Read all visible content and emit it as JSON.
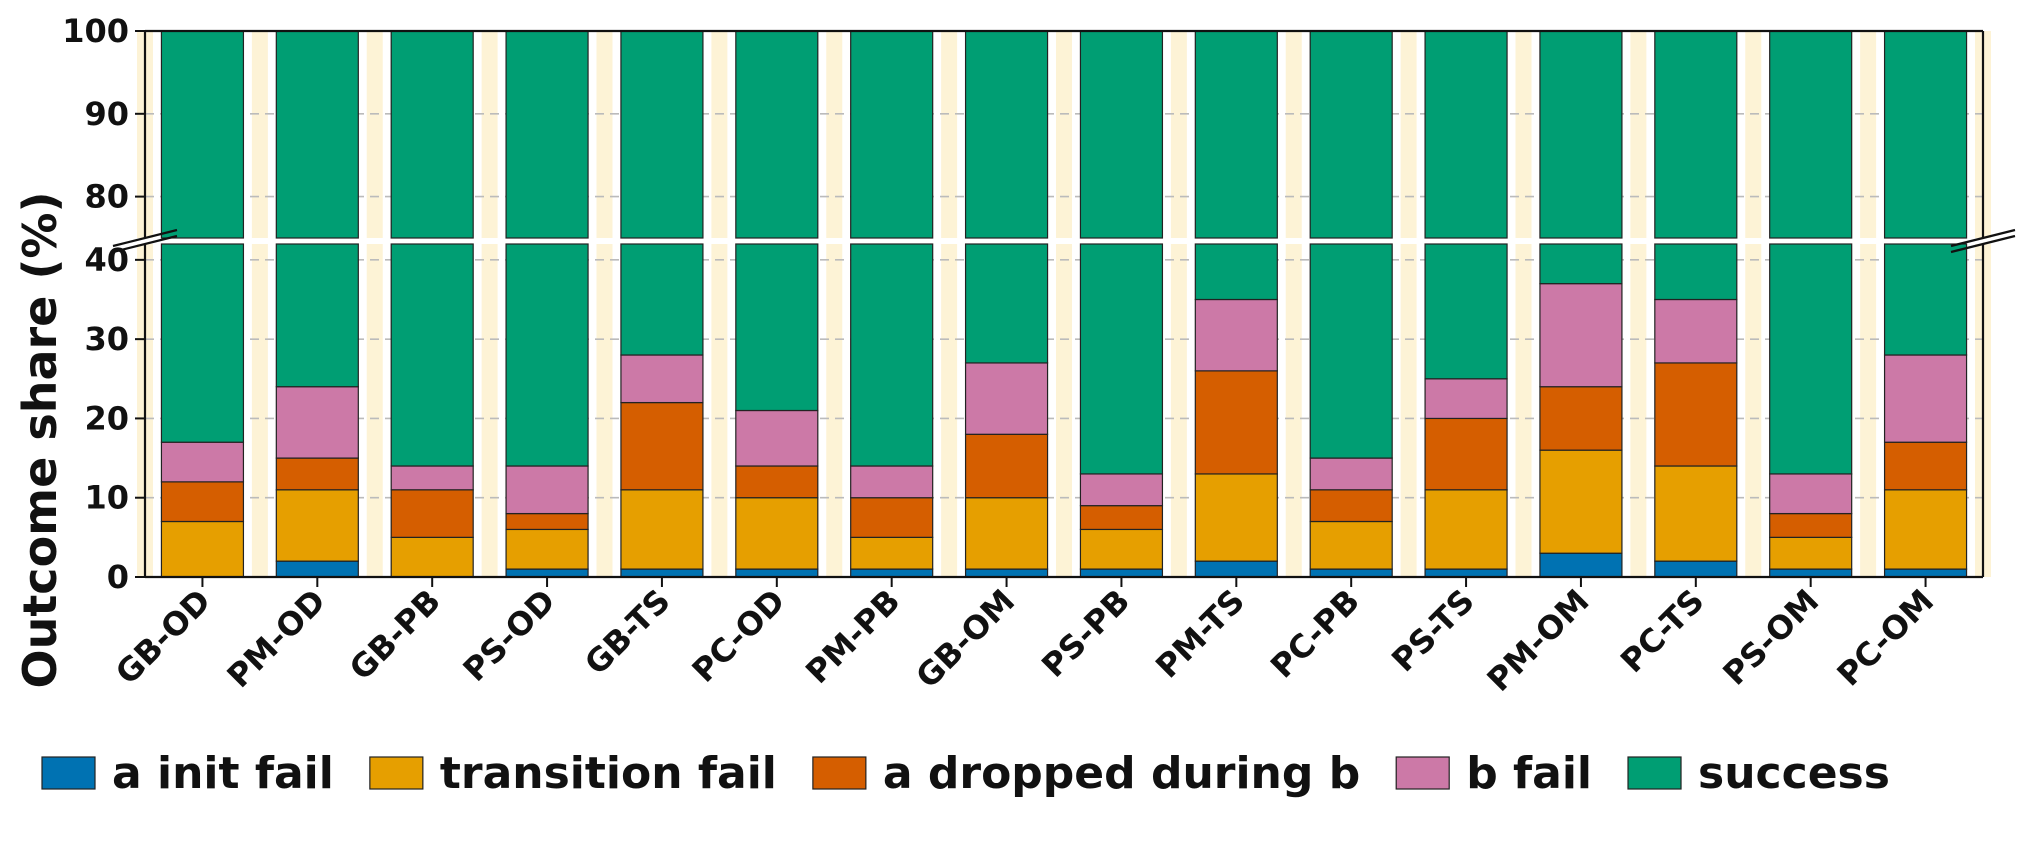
{
  "chart_data": {
    "type": "bar",
    "stacked": true,
    "broken_y_axis": true,
    "ylabel": "Outcome share (%)",
    "ylim_lower": [
      0,
      42
    ],
    "ylim_upper": [
      75,
      100
    ],
    "yticks_lower": [
      0,
      10,
      20,
      30,
      40
    ],
    "yticks_upper": [
      80,
      90,
      100
    ],
    "grid": true,
    "legend_position": "bottom",
    "categories": [
      "GB-OD",
      "PM-OD",
      "GB-PB",
      "PS-OD",
      "GB-TS",
      "PC-OD",
      "PM-PB",
      "GB-OM",
      "PS-PB",
      "PM-TS",
      "PC-PB",
      "PS-TS",
      "PM-OM",
      "PC-TS",
      "PS-OM",
      "PC-OM"
    ],
    "series": [
      {
        "name": "a init fail",
        "color": "#0072B2",
        "values": [
          0,
          2,
          0,
          1,
          1,
          1,
          1,
          1,
          1,
          2,
          1,
          1,
          3,
          2,
          1,
          1
        ]
      },
      {
        "name": "transition fail",
        "color": "#E69F00",
        "values": [
          7,
          9,
          5,
          5,
          10,
          9,
          4,
          9,
          5,
          11,
          6,
          10,
          13,
          12,
          4,
          10
        ]
      },
      {
        "name": "a dropped during b",
        "color": "#D55E00",
        "values": [
          5,
          4,
          6,
          2,
          11,
          4,
          5,
          8,
          3,
          13,
          4,
          9,
          8,
          13,
          3,
          6
        ]
      },
      {
        "name": "b fail",
        "color": "#CC79A7",
        "values": [
          5,
          9,
          3,
          6,
          6,
          7,
          4,
          9,
          4,
          9,
          4,
          5,
          13,
          8,
          5,
          11
        ]
      },
      {
        "name": "success",
        "color": "#009E73",
        "values": [
          83,
          76,
          86,
          86,
          72,
          79,
          86,
          73,
          87,
          65,
          85,
          75,
          63,
          65,
          87,
          72
        ]
      }
    ]
  }
}
